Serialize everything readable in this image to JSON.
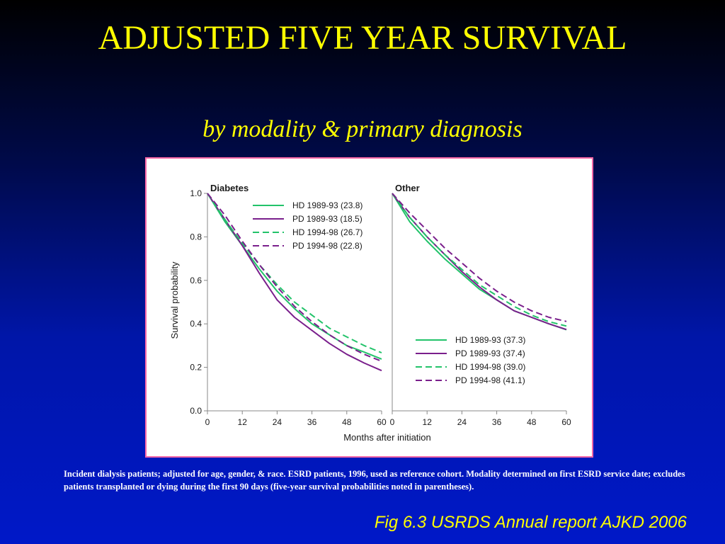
{
  "slide": {
    "title": "ADJUSTED FIVE YEAR SURVIVAL",
    "subtitle": "by modality & primary diagnosis",
    "caption": "Incident dialysis patients; adjusted for age, gender, & race. ESRD patients, 1996, used as reference cohort. Modality determined on first ESRD service date; excludes patients transplanted or dying during the first 90 days (five-year survival probabilities noted in parentheses).",
    "source": "Fig 6.3  USRDS Annual report AJKD 2006"
  },
  "colors": {
    "hd": "#22c36a",
    "pd": "#7a1f8c",
    "frame_border": "#ff69a8",
    "title": "#ffff00"
  },
  "chart_data": [
    {
      "type": "line",
      "title": "Diabetes",
      "xlabel": "Months after initiation",
      "ylabel": "Survival probability",
      "xlim": [
        0,
        60
      ],
      "ylim": [
        0,
        1
      ],
      "x_ticks": [
        "0",
        "12",
        "24",
        "36",
        "48",
        "60"
      ],
      "y_ticks": [
        "0.0",
        "0.2",
        "0.4",
        "0.6",
        "0.8",
        "1.0"
      ],
      "legend_position": "top-right",
      "x": [
        0,
        6,
        12,
        18,
        24,
        30,
        36,
        42,
        48,
        54,
        60
      ],
      "series": [
        {
          "name": "HD 1989-93 (23.8)",
          "style": "solid",
          "color": "#22c36a",
          "values": [
            1.0,
            0.87,
            0.76,
            0.65,
            0.55,
            0.47,
            0.4,
            0.35,
            0.3,
            0.27,
            0.238
          ]
        },
        {
          "name": "PD 1989-93 (18.5)",
          "style": "solid",
          "color": "#7a1f8c",
          "values": [
            1.0,
            0.88,
            0.76,
            0.63,
            0.51,
            0.43,
            0.37,
            0.31,
            0.26,
            0.22,
            0.185
          ]
        },
        {
          "name": "HD 1994-98 (26.7)",
          "style": "dashed",
          "color": "#22c36a",
          "values": [
            1.0,
            0.88,
            0.77,
            0.67,
            0.58,
            0.5,
            0.44,
            0.38,
            0.34,
            0.3,
            0.267
          ]
        },
        {
          "name": "PD 1994-98 (22.8)",
          "style": "dashed",
          "color": "#7a1f8c",
          "values": [
            1.0,
            0.9,
            0.78,
            0.67,
            0.57,
            0.48,
            0.41,
            0.35,
            0.3,
            0.26,
            0.228
          ]
        }
      ]
    },
    {
      "type": "line",
      "title": "Other",
      "xlabel": "Months after initiation",
      "ylabel": "",
      "xlim": [
        0,
        60
      ],
      "ylim": [
        0,
        1
      ],
      "x_ticks": [
        "0",
        "12",
        "24",
        "36",
        "48",
        "60"
      ],
      "legend_position": "bottom-right",
      "x": [
        0,
        6,
        12,
        18,
        24,
        30,
        36,
        42,
        48,
        54,
        60
      ],
      "series": [
        {
          "name": "HD 1989-93 (37.3)",
          "style": "solid",
          "color": "#22c36a",
          "values": [
            1.0,
            0.87,
            0.78,
            0.7,
            0.63,
            0.56,
            0.51,
            0.46,
            0.43,
            0.4,
            0.373
          ]
        },
        {
          "name": "PD 1989-93 (37.4)",
          "style": "solid",
          "color": "#7a1f8c",
          "values": [
            1.0,
            0.89,
            0.8,
            0.72,
            0.64,
            0.57,
            0.51,
            0.46,
            0.43,
            0.4,
            0.374
          ]
        },
        {
          "name": "HD 1994-98 (39.0)",
          "style": "dashed",
          "color": "#22c36a",
          "values": [
            1.0,
            0.89,
            0.8,
            0.72,
            0.65,
            0.58,
            0.53,
            0.48,
            0.44,
            0.41,
            0.39
          ]
        },
        {
          "name": "PD 1994-98 (41.1)",
          "style": "dashed",
          "color": "#7a1f8c",
          "values": [
            1.0,
            0.91,
            0.83,
            0.75,
            0.68,
            0.61,
            0.55,
            0.5,
            0.46,
            0.43,
            0.411
          ]
        }
      ]
    }
  ]
}
